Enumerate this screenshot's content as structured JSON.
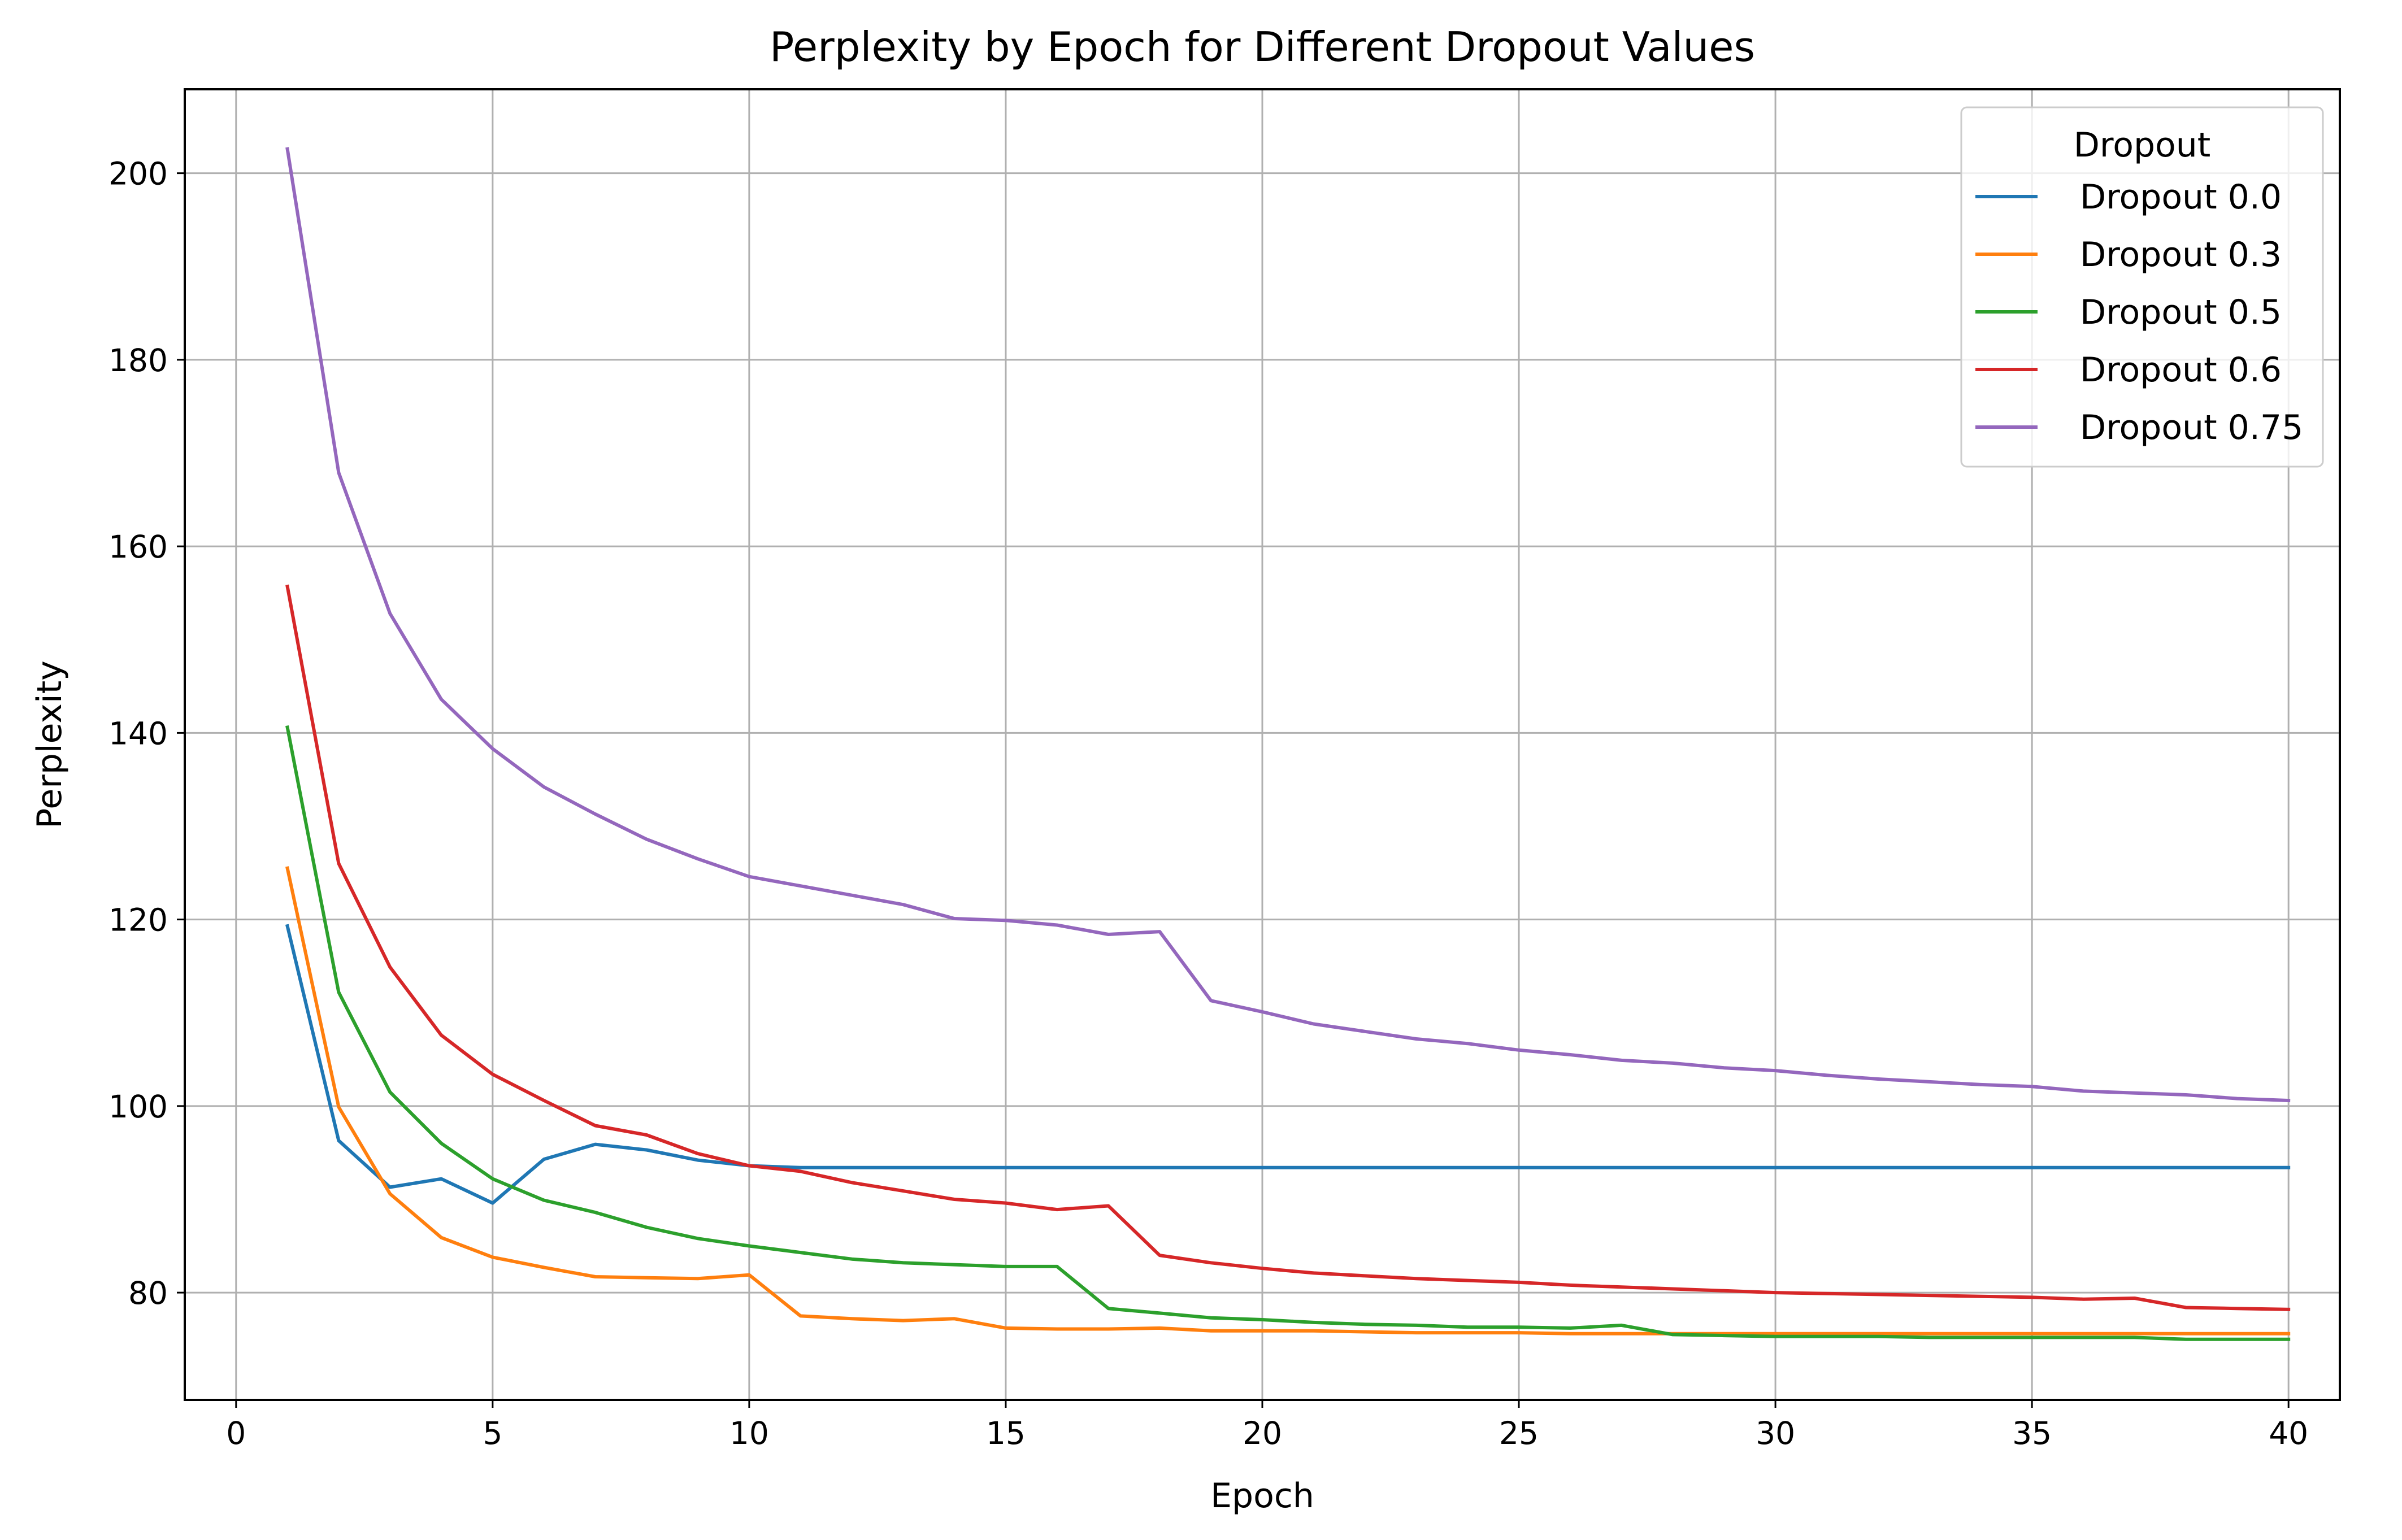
{
  "chart_data": {
    "type": "line",
    "title": "Perplexity by Epoch for Different Dropout Values",
    "xlabel": "Epoch",
    "ylabel": "Perplexity",
    "xlim": [
      -1,
      41
    ],
    "ylim": [
      68.5,
      209
    ],
    "xticks": [
      0,
      5,
      10,
      15,
      20,
      25,
      30,
      35,
      40
    ],
    "yticks": [
      80,
      100,
      120,
      140,
      160,
      180,
      200
    ],
    "grid": true,
    "legend": {
      "title": "Dropout",
      "placement": "top-right"
    },
    "x": [
      1,
      2,
      3,
      4,
      5,
      6,
      7,
      8,
      9,
      10,
      11,
      12,
      13,
      14,
      15,
      16,
      17,
      18,
      19,
      20,
      21,
      22,
      23,
      24,
      25,
      26,
      27,
      28,
      29,
      30,
      31,
      32,
      33,
      34,
      35,
      36,
      37,
      38,
      39,
      40
    ],
    "series": [
      {
        "name": "Dropout 0.0",
        "color": "#1f77b4",
        "values": [
          119.3,
          96.3,
          91.3,
          92.2,
          89.6,
          94.3,
          95.9,
          95.3,
          94.2,
          93.6,
          93.4,
          93.4,
          93.4,
          93.4,
          93.4,
          93.4,
          93.4,
          93.4,
          93.4,
          93.4,
          93.4,
          93.4,
          93.4,
          93.4,
          93.4,
          93.4,
          93.4,
          93.4,
          93.4,
          93.4,
          93.4,
          93.4,
          93.4,
          93.4,
          93.4,
          93.4,
          93.4,
          93.4,
          93.4,
          93.4
        ]
      },
      {
        "name": "Dropout 0.3",
        "color": "#ff7f0e",
        "values": [
          125.5,
          99.9,
          90.6,
          85.9,
          83.8,
          82.7,
          81.7,
          81.6,
          81.5,
          81.9,
          77.5,
          77.2,
          77.0,
          77.2,
          76.2,
          76.1,
          76.1,
          76.2,
          75.9,
          75.9,
          75.9,
          75.8,
          75.7,
          75.7,
          75.7,
          75.6,
          75.6,
          75.6,
          75.6,
          75.6,
          75.6,
          75.6,
          75.6,
          75.6,
          75.6,
          75.6,
          75.6,
          75.6,
          75.6,
          75.6
        ]
      },
      {
        "name": "Dropout 0.5",
        "color": "#2ca02c",
        "values": [
          140.6,
          112.2,
          101.5,
          96.0,
          92.2,
          89.9,
          88.6,
          87.0,
          85.8,
          85.0,
          84.3,
          83.6,
          83.2,
          83.0,
          82.8,
          82.8,
          78.3,
          77.8,
          77.3,
          77.1,
          76.8,
          76.6,
          76.5,
          76.3,
          76.3,
          76.2,
          76.5,
          75.5,
          75.4,
          75.3,
          75.3,
          75.3,
          75.2,
          75.2,
          75.2,
          75.2,
          75.2,
          75.0,
          75.0,
          75.0
        ]
      },
      {
        "name": "Dropout 0.6",
        "color": "#d62728",
        "values": [
          155.7,
          126.0,
          114.9,
          107.6,
          103.4,
          100.6,
          97.9,
          96.9,
          94.9,
          93.6,
          93.0,
          91.8,
          90.9,
          90.0,
          89.6,
          88.9,
          89.3,
          84.0,
          83.2,
          82.6,
          82.1,
          81.8,
          81.5,
          81.3,
          81.1,
          80.8,
          80.6,
          80.4,
          80.2,
          80.0,
          79.9,
          79.8,
          79.7,
          79.6,
          79.5,
          79.3,
          79.4,
          78.4,
          78.3,
          78.2
        ]
      },
      {
        "name": "Dropout 0.75",
        "color": "#9467bd",
        "values": [
          202.6,
          167.9,
          152.8,
          143.6,
          138.3,
          134.2,
          131.3,
          128.6,
          126.5,
          124.6,
          123.6,
          122.6,
          121.6,
          120.1,
          119.9,
          119.4,
          118.4,
          118.7,
          111.3,
          110.1,
          108.8,
          108.0,
          107.2,
          106.7,
          106.0,
          105.5,
          104.9,
          104.6,
          104.1,
          103.8,
          103.3,
          102.9,
          102.6,
          102.3,
          102.1,
          101.6,
          101.4,
          101.2,
          100.8,
          100.6
        ]
      }
    ]
  }
}
